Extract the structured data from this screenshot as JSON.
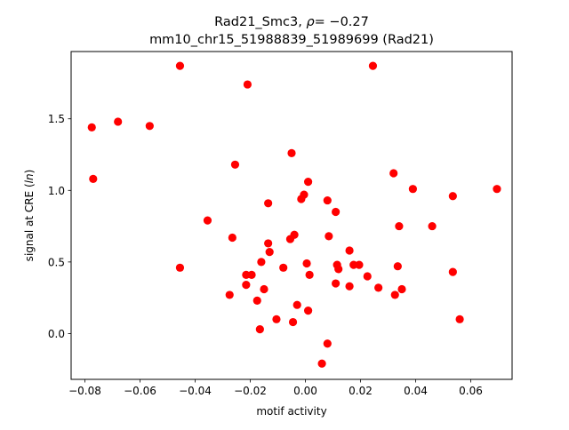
{
  "chart_data": {
    "type": "scatter",
    "title_line1_prefix": "Rad21_Smc3, ",
    "title_line1_rho": "ρ",
    "title_line1_suffix": "= −0.27",
    "title_line2": "mm10_chr15_51988839_51989699 (Rad21)",
    "xlabel": "motif activity",
    "ylabel_prefix": "signal at CRE (",
    "ylabel_italic": "ln",
    "ylabel_suffix": ")",
    "xlim": [
      -0.085,
      0.075
    ],
    "ylim": [
      -0.32,
      1.97
    ],
    "xticks": [
      -0.08,
      -0.06,
      -0.04,
      -0.02,
      0.0,
      0.02,
      0.04,
      0.06
    ],
    "xtick_labels": [
      "−0.08",
      "−0.06",
      "−0.04",
      "−0.02",
      "0.00",
      "0.02",
      "0.04",
      "0.06"
    ],
    "yticks": [
      0.0,
      0.5,
      1.0,
      1.5
    ],
    "ytick_labels": [
      "0.0",
      "0.5",
      "1.0",
      "1.5"
    ],
    "grid": false,
    "marker_color": "#ff0000",
    "points": [
      {
        "x": -0.0455,
        "y": 1.87
      },
      {
        "x": 0.0245,
        "y": 1.87
      },
      {
        "x": -0.021,
        "y": 1.74
      },
      {
        "x": -0.0775,
        "y": 1.44
      },
      {
        "x": -0.068,
        "y": 1.48
      },
      {
        "x": -0.0565,
        "y": 1.45
      },
      {
        "x": -0.077,
        "y": 1.08
      },
      {
        "x": -0.0255,
        "y": 1.18
      },
      {
        "x": -0.005,
        "y": 1.26
      },
      {
        "x": 0.032,
        "y": 1.12
      },
      {
        "x": 0.001,
        "y": 1.06
      },
      {
        "x": 0.039,
        "y": 1.01
      },
      {
        "x": 0.0695,
        "y": 1.01
      },
      {
        "x": -0.0005,
        "y": 0.97
      },
      {
        "x": -0.0015,
        "y": 0.94
      },
      {
        "x": 0.008,
        "y": 0.93
      },
      {
        "x": 0.0535,
        "y": 0.96
      },
      {
        "x": -0.0135,
        "y": 0.91
      },
      {
        "x": 0.011,
        "y": 0.85
      },
      {
        "x": -0.0355,
        "y": 0.79
      },
      {
        "x": 0.034,
        "y": 0.75
      },
      {
        "x": 0.046,
        "y": 0.75
      },
      {
        "x": -0.0265,
        "y": 0.67
      },
      {
        "x": -0.004,
        "y": 0.69
      },
      {
        "x": -0.0055,
        "y": 0.66
      },
      {
        "x": 0.0085,
        "y": 0.68
      },
      {
        "x": -0.0135,
        "y": 0.63
      },
      {
        "x": 0.016,
        "y": 0.58
      },
      {
        "x": -0.013,
        "y": 0.57
      },
      {
        "x": -0.016,
        "y": 0.5
      },
      {
        "x": 0.0005,
        "y": 0.49
      },
      {
        "x": 0.0175,
        "y": 0.48
      },
      {
        "x": 0.0195,
        "y": 0.48
      },
      {
        "x": 0.0115,
        "y": 0.48
      },
      {
        "x": 0.012,
        "y": 0.45
      },
      {
        "x": -0.0455,
        "y": 0.46
      },
      {
        "x": -0.008,
        "y": 0.46
      },
      {
        "x": 0.0335,
        "y": 0.47
      },
      {
        "x": -0.0215,
        "y": 0.41
      },
      {
        "x": -0.0195,
        "y": 0.41
      },
      {
        "x": 0.0015,
        "y": 0.41
      },
      {
        "x": 0.0225,
        "y": 0.4
      },
      {
        "x": 0.0535,
        "y": 0.43
      },
      {
        "x": -0.0215,
        "y": 0.34
      },
      {
        "x": -0.015,
        "y": 0.31
      },
      {
        "x": 0.011,
        "y": 0.35
      },
      {
        "x": 0.016,
        "y": 0.33
      },
      {
        "x": 0.0265,
        "y": 0.32
      },
      {
        "x": 0.035,
        "y": 0.31
      },
      {
        "x": 0.0325,
        "y": 0.27
      },
      {
        "x": -0.0275,
        "y": 0.27
      },
      {
        "x": -0.0175,
        "y": 0.23
      },
      {
        "x": -0.003,
        "y": 0.2
      },
      {
        "x": 0.001,
        "y": 0.16
      },
      {
        "x": -0.0105,
        "y": 0.1
      },
      {
        "x": -0.0045,
        "y": 0.08
      },
      {
        "x": 0.056,
        "y": 0.1
      },
      {
        "x": -0.0165,
        "y": 0.03
      },
      {
        "x": 0.008,
        "y": -0.07
      },
      {
        "x": 0.006,
        "y": -0.21
      }
    ]
  }
}
